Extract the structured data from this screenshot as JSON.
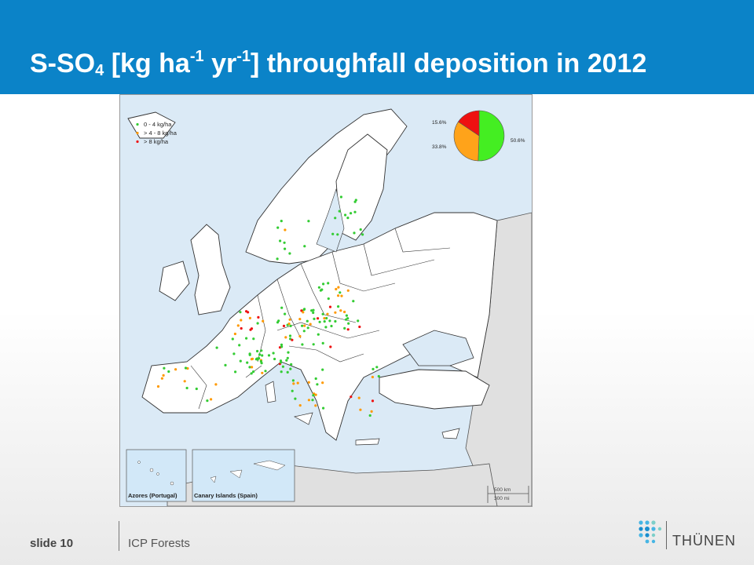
{
  "header": {
    "title_main": "S-SO",
    "title_sub": "4",
    "title_mid": " [kg ha",
    "title_sup1": "-1",
    "title_mid2": " yr",
    "title_sup2": "-1",
    "title_end": "] throughfall deposition in 2012"
  },
  "map": {
    "legend": [
      {
        "label": "0 - 4 kg/ha",
        "color": "#33cc33"
      },
      {
        "label": "> 4 - 8 kg/ha",
        "color": "#ff9900"
      },
      {
        "label": "> 8 kg/ha",
        "color": "#ee1111"
      }
    ],
    "pie": [
      {
        "label": "50.6%",
        "value": 50.6,
        "color": "#44ee22"
      },
      {
        "label": "33.8%",
        "value": 33.8,
        "color": "#ffa31a"
      },
      {
        "label": "15.6%",
        "value": 15.6,
        "color": "#ee1111"
      }
    ],
    "inset_azores": "Azores (Portugal)",
    "inset_canary": "Canary Islands (Spain)",
    "scale_km": "500 km",
    "scale_mi": "300 mi",
    "colors": {
      "sea": "#dbeaf6",
      "land": "#ffffff",
      "outside": "#e0e0e0",
      "border": "#333333"
    }
  },
  "footer": {
    "slide": "slide 10",
    "org": "ICP Forests",
    "logo_text": "THÜNEN"
  }
}
